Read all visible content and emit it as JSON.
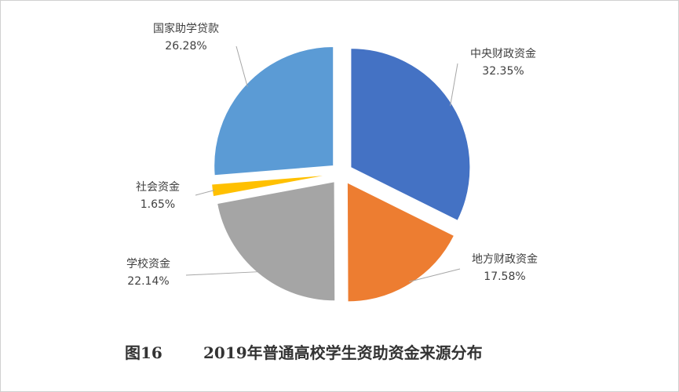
{
  "caption": {
    "figure_number": "图16",
    "title": "2019年普通高校学生资助资金来源分布"
  },
  "chart_data": {
    "type": "pie",
    "exploded": true,
    "title": "2019年普通高校学生资助资金来源分布",
    "slices": [
      {
        "label": "中央财政资金",
        "value": 32.35,
        "display": "32.35%",
        "color": "#4472c4"
      },
      {
        "label": "地方财政资金",
        "value": 17.58,
        "display": "17.58%",
        "color": "#ed7d31"
      },
      {
        "label": "学校资金",
        "value": 22.14,
        "display": "22.14%",
        "color": "#a5a5a5"
      },
      {
        "label": "社会资金",
        "value": 1.65,
        "display": "1.65%",
        "color": "#ffc000"
      },
      {
        "label": "国家助学贷款",
        "value": 26.28,
        "display": "26.28%",
        "color": "#5b9bd5"
      }
    ]
  }
}
